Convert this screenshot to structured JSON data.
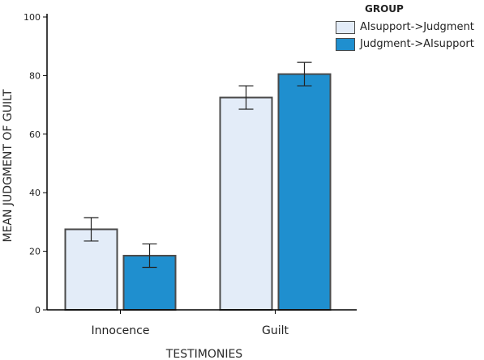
{
  "chart_data": {
    "type": "bar",
    "title": "",
    "xlabel": "TESTIMONIES",
    "ylabel": "MEAN JUDGMENT OF GUILT",
    "categories": [
      "Innocence",
      "Guilt"
    ],
    "ylim": [
      0,
      100
    ],
    "yticks": [
      "0",
      "20",
      "40",
      "60",
      "80",
      "100"
    ],
    "grid": false,
    "legend": {
      "title": "GROUP",
      "position": "top-right"
    },
    "series": [
      {
        "name": "AIsupport->Judgment",
        "color": "#e3ecf8",
        "values": [
          27.5,
          72.5
        ],
        "error": [
          [
            23.5,
            31.5
          ],
          [
            68.5,
            76.5
          ]
        ]
      },
      {
        "name": "Judgment->AIsupport",
        "color": "#1f8fcf",
        "values": [
          18.5,
          80.5
        ],
        "error": [
          [
            14.5,
            22.5
          ],
          [
            76.5,
            84.5
          ]
        ]
      }
    ]
  }
}
